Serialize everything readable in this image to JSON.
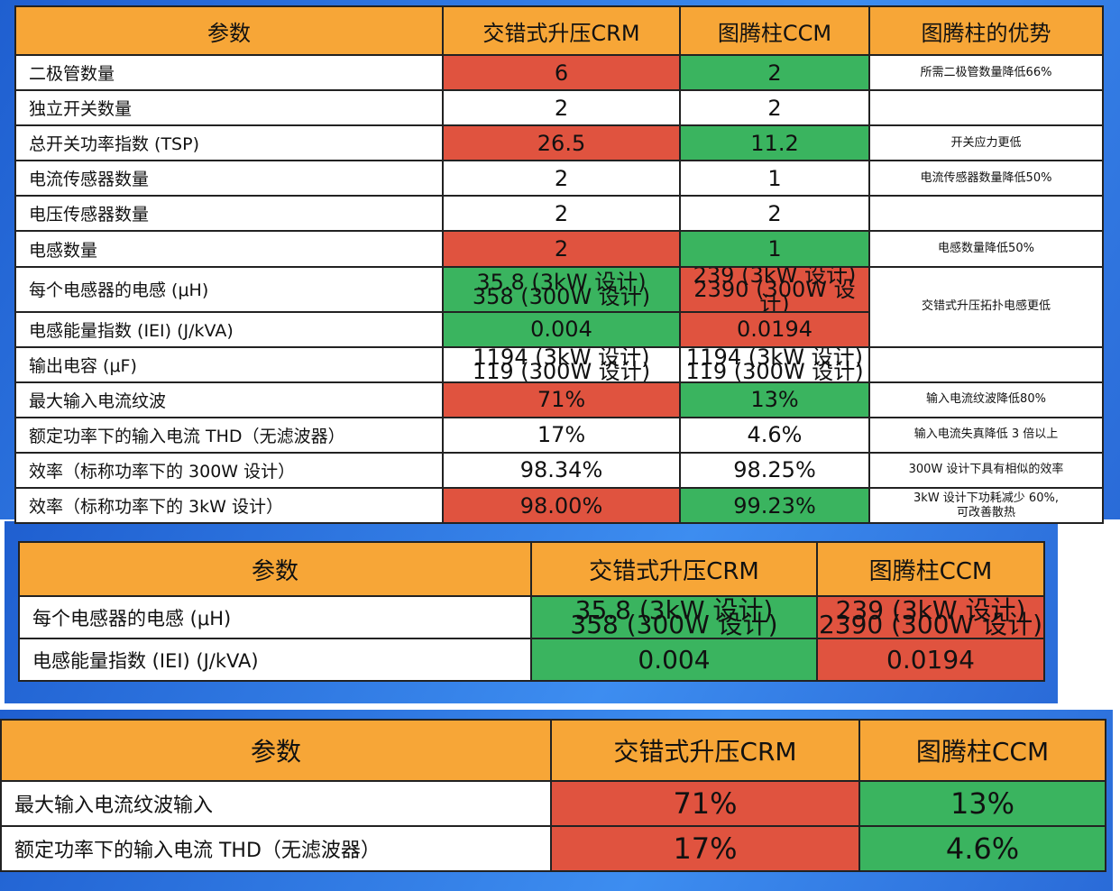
{
  "tables": [
    {
      "header": [
        "参数",
        "交错式升压CRM",
        "图腾柱CCM",
        "图腾柱的优势"
      ],
      "rows": [
        {
          "label": "二极管数量",
          "crm": "6",
          "ccm": "2",
          "advantage": "所需二极管数量降低66%",
          "crm_fill": "#e0533f",
          "ccm_fill": "#3ab45f"
        },
        {
          "label": "独立开关数量",
          "crm": "2",
          "ccm": "2"
        },
        {
          "label": "总开关功率指数 (TSP)",
          "crm": "26.5",
          "ccm": "11.2",
          "advantage": "开关应力更低",
          "crm_fill": "#e0533f",
          "ccm_fill": "#3ab45f"
        },
        {
          "label": "电流传感器数量",
          "crm": "2",
          "ccm": "1",
          "advantage": "电流传感器数量降低50%"
        },
        {
          "label": "电压传感器数量",
          "crm": "2",
          "ccm": "2"
        },
        {
          "label": "电感数量",
          "crm": "2",
          "ccm": "1",
          "advantage": "电感数量降低50%",
          "crm_fill": "#e0533f",
          "ccm_fill": "#3ab45f"
        },
        {
          "label": "每个电感器的电感 (μH)",
          "crm": [
            "35.8 (3kW 设计)",
            "358 (300W 设计)"
          ],
          "ccm": [
            "239 (3kW 设计)",
            "2390 (300W 设计)"
          ],
          "advantage": "交错式升压拓扑电感更低",
          "advantage_rows": 2,
          "crm_fill": "#3ab45f",
          "ccm_fill": "#e0533f"
        },
        {
          "label": "电感能量指数 (IEI) (J/kVA)",
          "crm": "0.004",
          "ccm": "0.0194",
          "crm_fill": "#3ab45f",
          "ccm_fill": "#e0533f"
        },
        {
          "label": "输出电容 (μF)",
          "crm": [
            "1194 (3kW 设计)",
            "119 (300W 设计)"
          ],
          "ccm": [
            "1194 (3kW 设计)",
            "119 (300W 设计)"
          ]
        },
        {
          "label": "最大输入电流纹波",
          "crm": "71%",
          "ccm": "13%",
          "advantage": "输入电流纹波降低80%",
          "crm_fill": "#e0533f",
          "ccm_fill": "#3ab45f"
        },
        {
          "label": "额定功率下的输入电流 THD（无滤波器）",
          "crm": "17%",
          "ccm": "4.6%",
          "advantage": "输入电流失真降低 3 倍以上"
        },
        {
          "label": "效率（标称功率下的 300W 设计）",
          "crm": "98.34%",
          "ccm": "98.25%",
          "advantage": "300W 设计下具有相似的效率"
        },
        {
          "label": "效率（标称功率下的 3kW 设计）",
          "crm": "98.00%",
          "ccm": "99.23%",
          "advantage": [
            "3kW 设计下功耗减少 60%,",
            "可改善散热"
          ],
          "crm_fill": "#e0533f",
          "ccm_fill": "#3ab45f"
        }
      ]
    },
    {
      "header": [
        "参数",
        "交错式升压CRM",
        "图腾柱CCM"
      ],
      "rows": [
        {
          "label": "每个电感器的电感 (μH)",
          "crm": [
            "35.8 (3kW 设计)",
            "358 (300W 设计)"
          ],
          "ccm": [
            "239 (3kW 设计)",
            "2390 (300W 设计)"
          ],
          "crm_fill": "#3ab45f",
          "ccm_fill": "#e0533f"
        },
        {
          "label": "电感能量指数 (IEI) (J/kVA)",
          "crm": "0.004",
          "ccm": "0.0194",
          "crm_fill": "#3ab45f",
          "ccm_fill": "#e0533f"
        }
      ]
    },
    {
      "header": [
        "参数",
        "交错式升压CRM",
        "图腾柱CCM"
      ],
      "rows": [
        {
          "label": "最大输入电流纹波输入",
          "crm": "71%",
          "ccm": "13%",
          "crm_fill": "#e0533f",
          "ccm_fill": "#3ab45f"
        },
        {
          "label": "额定功率下的输入电流 THD（无滤波器）",
          "crm": "17%",
          "ccm": "4.6%",
          "crm_fill": "#e0533f",
          "ccm_fill": "#3ab45f"
        }
      ]
    }
  ]
}
